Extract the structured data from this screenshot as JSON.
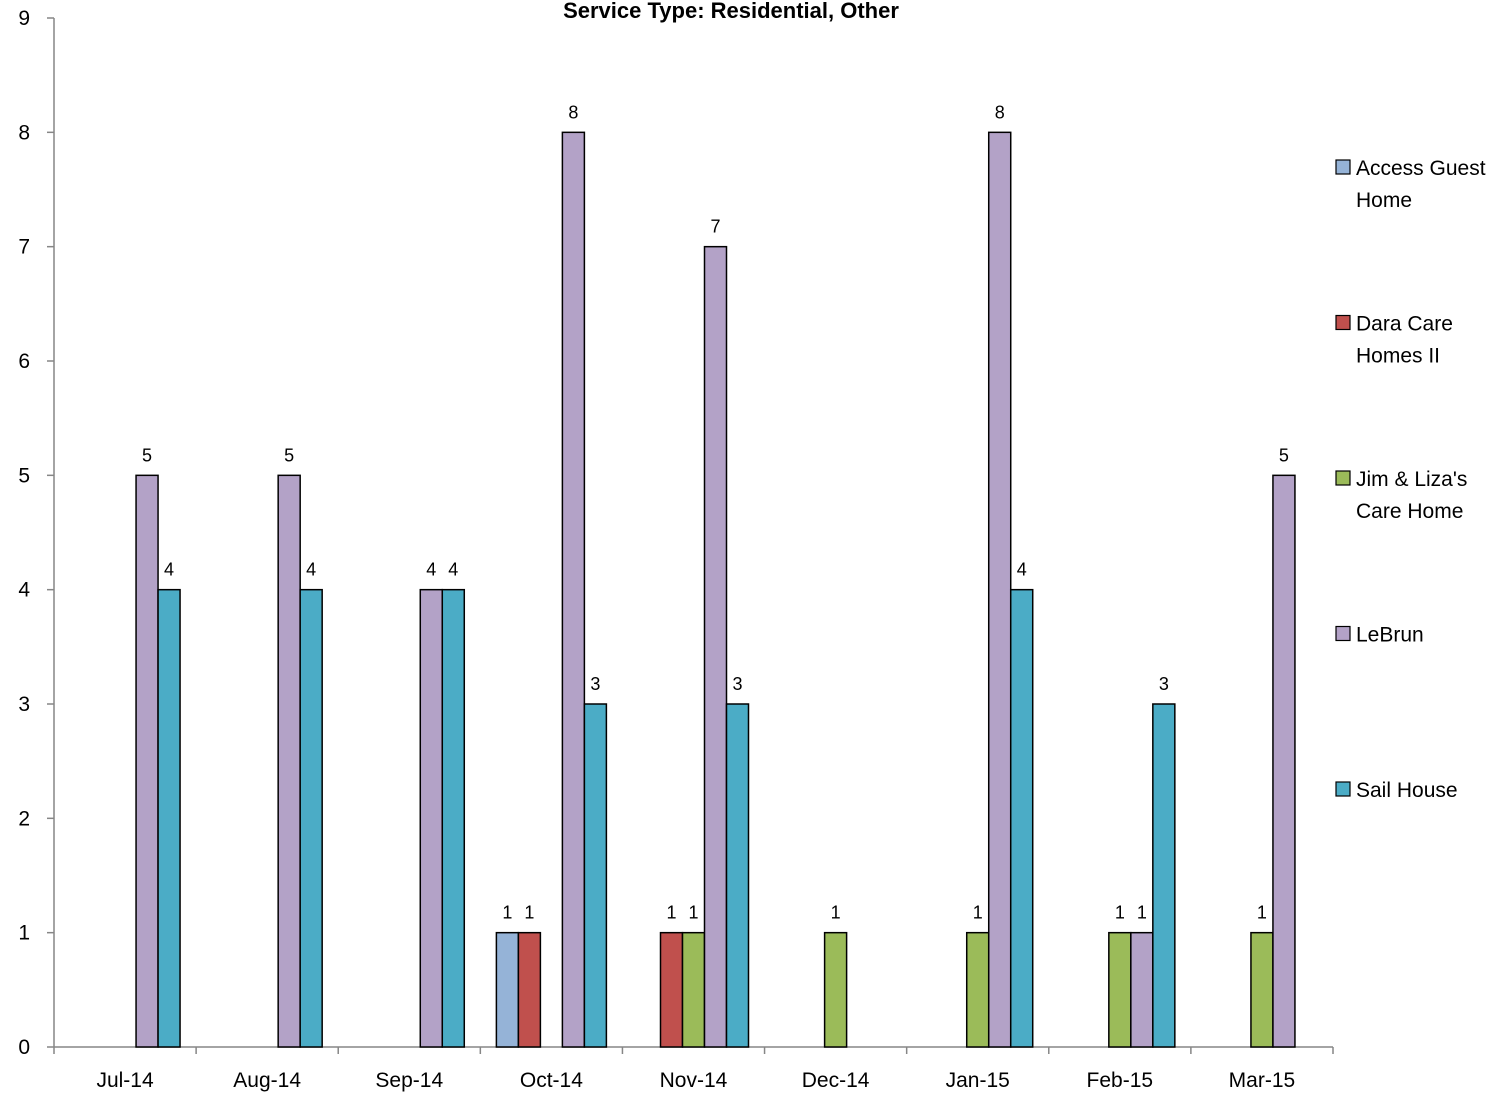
{
  "chart_data": {
    "type": "bar",
    "title": "Service Type:  Residential, Other",
    "xlabel": "",
    "ylabel": "",
    "ylim": [
      0,
      9
    ],
    "y_ticks": [
      "0",
      "1",
      "2",
      "3",
      "4",
      "5",
      "6",
      "7",
      "8",
      "9"
    ],
    "categories": [
      "Jul-14",
      "Aug-14",
      "Sep-14",
      "Oct-14",
      "Nov-14",
      "Dec-14",
      "Jan-15",
      "Feb-15",
      "Mar-15"
    ],
    "legend_position": "right",
    "grid": false,
    "series": [
      {
        "name": "Access Guest Home",
        "legend_lines": [
          "Access Guest",
          "Home"
        ],
        "color": "#95B3D7",
        "values": [
          null,
          null,
          null,
          1,
          null,
          null,
          null,
          null,
          null
        ]
      },
      {
        "name": "Dara Care Homes II",
        "legend_lines": [
          "Dara Care",
          "Homes II"
        ],
        "color": "#C0504D",
        "values": [
          null,
          null,
          null,
          1,
          1,
          null,
          null,
          null,
          null
        ]
      },
      {
        "name": "Jim & Liza's Care Home",
        "legend_lines": [
          "Jim & Liza's",
          "Care Home"
        ],
        "color": "#9BBB59",
        "values": [
          null,
          null,
          null,
          null,
          1,
          1,
          1,
          1,
          1
        ]
      },
      {
        "name": "LeBrun",
        "legend_lines": [
          "LeBrun"
        ],
        "color": "#B3A2C7",
        "values": [
          5,
          5,
          4,
          8,
          7,
          null,
          8,
          1,
          5
        ]
      },
      {
        "name": "Sail House",
        "legend_lines": [
          "Sail House"
        ],
        "color": "#4BACC6",
        "values": [
          4,
          4,
          4,
          3,
          3,
          null,
          4,
          3,
          null
        ]
      }
    ]
  }
}
